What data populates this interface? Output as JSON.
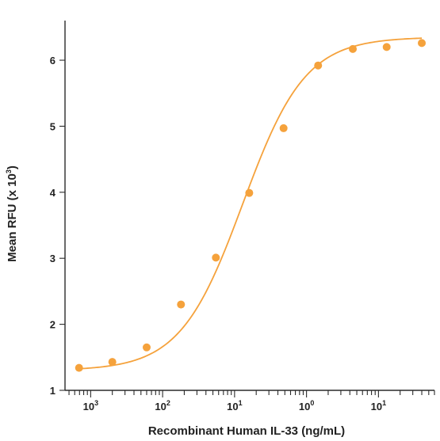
{
  "chart_data": {
    "type": "scatter",
    "xlabel": "Recombinant Human IL-33 (ng/mL)",
    "ylabel_main": "Mean RFU (x 10",
    "ylabel_exp": "3",
    "ylabel_close": ")",
    "x_scale": "log",
    "xlim": [
      0.00044,
      60
    ],
    "ylim": [
      1,
      6.6
    ],
    "y_ticks": [
      "1",
      "2",
      "3",
      "4",
      "5",
      "6"
    ],
    "x_ticks": [
      {
        "value": 0.001,
        "base": "10",
        "exp": "3"
      },
      {
        "value": 0.01,
        "base": "10",
        "exp": "2"
      },
      {
        "value": 0.1,
        "base": "10",
        "exp": "1"
      },
      {
        "value": 1,
        "base": "10",
        "exp": "0"
      },
      {
        "value": 10,
        "base": "10",
        "exp": "1"
      }
    ],
    "color": "#f5a23c",
    "grid": false,
    "series": [
      {
        "points": [
          {
            "x": 0.00069,
            "y": 1.34
          },
          {
            "x": 0.002,
            "y": 1.43
          },
          {
            "x": 0.006,
            "y": 1.65
          },
          {
            "x": 0.018,
            "y": 2.3
          },
          {
            "x": 0.055,
            "y": 3.01
          },
          {
            "x": 0.16,
            "y": 3.99
          },
          {
            "x": 0.48,
            "y": 4.97
          },
          {
            "x": 1.45,
            "y": 5.92
          },
          {
            "x": 4.4,
            "y": 6.17
          },
          {
            "x": 13,
            "y": 6.2
          },
          {
            "x": 40,
            "y": 6.26
          }
        ],
        "fit": {
          "bottom": 1.3,
          "top": 6.35,
          "ec50": 0.13,
          "hill": 1.0
        }
      }
    ]
  }
}
